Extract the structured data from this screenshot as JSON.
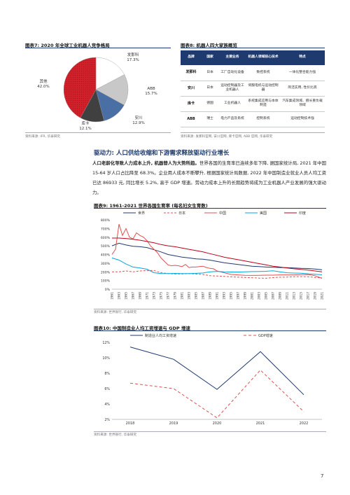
{
  "fig7": {
    "title": "图表7:  2020 年全球工业机器人竞争格局",
    "source": "资料来源: IFR, 华泰研究",
    "chart_data": {
      "type": "pie",
      "slices": [
        {
          "name": "发那科",
          "value": 17.3,
          "label": "17.3%",
          "color": "#ffffff"
        },
        {
          "name": "ABB",
          "value": 15.7,
          "label": "15.7%",
          "color": "#c8c8c8"
        },
        {
          "name": "安川",
          "value": 12.9,
          "label": "12.9%",
          "color": "#4a6fa5"
        },
        {
          "name": "库卡",
          "value": 12.1,
          "label": "12.1%",
          "color": "#404040"
        },
        {
          "name": "其他",
          "value": 42.0,
          "label": "42.0%",
          "color": "#d0202a"
        }
      ]
    }
  },
  "fig8": {
    "title": "图表8:  机器人四大家族概览",
    "source": "资料来源: 发那科官网, 安川官网, 库卡官网, ABB 官网, 华泰研究",
    "headers": [
      "品牌",
      "国家",
      "主要业务",
      "机器人领域核心技术",
      "特点"
    ],
    "rows": [
      [
        "发那科",
        "日本",
        "工厂自动化设备",
        "数控系统",
        "一体化整合能力强"
      ],
      [
        "安川",
        "日本",
        "运动控制器及工业机器人",
        "伺服电机与运动控制器",
        "简洁实用, 性价比高"
      ],
      [
        "库卡",
        "德国",
        "工业机器人",
        "系统集成应用与本体制造",
        "汽车集成领域、擅长重负载领域"
      ],
      [
        "ABB",
        "瑞士",
        "电力产品及系统",
        "控制系统",
        "运动控制技术强"
      ]
    ]
  },
  "section": {
    "heading": "驱动力: 人口供给收缩和下游需求释放驱动行业增长",
    "para_bold": "人口老龄化导致人力成本上升, 机器替人为大势所趋。",
    "para_text": "世界各国的生育率已连续多年下降, 据国家统计局, 2021 年中国 15-64 岁人口占比降至 68.3%。企业用人成本不断攀升, 根据国家统计局数据, 2022 年中国制造业就业人员人均工资已达 86933 元, 同比增长 5.2%, 高于 GDP 增速。劳动力成本上升的长期趋势将成为工业机器人产业发展的强大驱动力。"
  },
  "fig9": {
    "title": "图表9:  1961-2021 世界各国生育率 (每名妇女生育数)",
    "source": "资料来源: 世界银行, 华泰研究",
    "chart_data": {
      "type": "line",
      "x_start": 1961,
      "x_end": 2021,
      "x_tick_labels": [
        "1961",
        "1963",
        "1965",
        "1967",
        "1969",
        "1971",
        "1973",
        "1975",
        "1977",
        "1979",
        "1981",
        "1983",
        "1985",
        "1987",
        "1989",
        "1991",
        "1993",
        "1995",
        "1997",
        "1999",
        "2001",
        "2003",
        "2005",
        "2007",
        "2009",
        "2011",
        "2013",
        "2015",
        "2017",
        "2019",
        "2021"
      ],
      "y_ticks": [
        "0%",
        "100%",
        "200%",
        "300%",
        "400%",
        "500%",
        "600%",
        "700%",
        "800%"
      ],
      "ylim": [
        0,
        800
      ],
      "series": [
        {
          "name": "世界",
          "color": "#1f3a6e",
          "dash": "",
          "points": [
            [
              1961,
              500
            ],
            [
              1963,
              530
            ],
            [
              1965,
              510
            ],
            [
              1967,
              495
            ],
            [
              1969,
              490
            ],
            [
              1971,
              480
            ],
            [
              1973,
              455
            ],
            [
              1975,
              430
            ],
            [
              1977,
              400
            ],
            [
              1979,
              385
            ],
            [
              1981,
              370
            ],
            [
              1983,
              360
            ],
            [
              1985,
              350
            ],
            [
              1987,
              345
            ],
            [
              1989,
              335
            ],
            [
              1991,
              320
            ],
            [
              1993,
              305
            ],
            [
              1995,
              295
            ],
            [
              1997,
              285
            ],
            [
              1999,
              275
            ],
            [
              2001,
              265
            ],
            [
              2003,
              260
            ],
            [
              2005,
              255
            ],
            [
              2007,
              252
            ],
            [
              2009,
              250
            ],
            [
              2011,
              248
            ],
            [
              2013,
              245
            ],
            [
              2015,
              240
            ],
            [
              2017,
              238
            ],
            [
              2019,
              232
            ],
            [
              2021,
              225
            ]
          ]
        },
        {
          "name": "日本",
          "color": "#e05050",
          "dash": "3,2",
          "points": [
            [
              1961,
              200
            ],
            [
              1963,
              200
            ],
            [
              1965,
              210
            ],
            [
              1967,
              200
            ],
            [
              1969,
              210
            ],
            [
              1971,
              215
            ],
            [
              1973,
              215
            ],
            [
              1975,
              190
            ],
            [
              1977,
              180
            ],
            [
              1979,
              175
            ],
            [
              1981,
              175
            ],
            [
              1983,
              180
            ],
            [
              1985,
              175
            ],
            [
              1987,
              170
            ],
            [
              1989,
              155
            ],
            [
              1991,
              152
            ],
            [
              1993,
              148
            ],
            [
              1995,
              142
            ],
            [
              1997,
              138
            ],
            [
              1999,
              135
            ],
            [
              2001,
              132
            ],
            [
              2003,
              128
            ],
            [
              2005,
              126
            ],
            [
              2007,
              133
            ],
            [
              2009,
              137
            ],
            [
              2011,
              139
            ],
            [
              2013,
              143
            ],
            [
              2015,
              145
            ],
            [
              2017,
              143
            ],
            [
              2019,
              136
            ],
            [
              2021,
              130
            ]
          ]
        },
        {
          "name": "中国",
          "color": "#e05050",
          "dash": "",
          "points": [
            [
              1961,
              400
            ],
            [
              1962,
              460
            ],
            [
              1963,
              750
            ],
            [
              1964,
              620
            ],
            [
              1965,
              700
            ],
            [
              1966,
              600
            ],
            [
              1967,
              580
            ],
            [
              1968,
              650
            ],
            [
              1969,
              620
            ],
            [
              1970,
              600
            ],
            [
              1971,
              560
            ],
            [
              1972,
              500
            ],
            [
              1973,
              460
            ],
            [
              1974,
              420
            ],
            [
              1975,
              360
            ],
            [
              1976,
              320
            ],
            [
              1977,
              280
            ],
            [
              1978,
              270
            ],
            [
              1979,
              275
            ],
            [
              1980,
              270
            ],
            [
              1981,
              260
            ],
            [
              1982,
              285
            ],
            [
              1983,
              250
            ],
            [
              1984,
              255
            ],
            [
              1985,
              255
            ],
            [
              1986,
              260
            ],
            [
              1987,
              265
            ],
            [
              1988,
              250
            ],
            [
              1989,
              240
            ],
            [
              1990,
              235
            ],
            [
              1991,
              210
            ],
            [
              1993,
              190
            ],
            [
              1995,
              170
            ],
            [
              1997,
              165
            ],
            [
              1999,
              160
            ],
            [
              2001,
              158
            ],
            [
              2003,
              160
            ],
            [
              2005,
              162
            ],
            [
              2007,
              162
            ],
            [
              2009,
              165
            ],
            [
              2011,
              165
            ],
            [
              2013,
              165
            ],
            [
              2015,
              167
            ],
            [
              2017,
              170
            ],
            [
              2019,
              155
            ],
            [
              2021,
              125
            ]
          ]
        },
        {
          "name": "美国",
          "color": "#00a8e0",
          "dash": "",
          "points": [
            [
              1961,
              360
            ],
            [
              1963,
              335
            ],
            [
              1965,
              290
            ],
            [
              1967,
              255
            ],
            [
              1969,
              245
            ],
            [
              1971,
              230
            ],
            [
              1973,
              190
            ],
            [
              1975,
              180
            ],
            [
              1977,
              180
            ],
            [
              1979,
              182
            ],
            [
              1981,
              180
            ],
            [
              1983,
              180
            ],
            [
              1985,
              183
            ],
            [
              1987,
              187
            ],
            [
              1989,
              200
            ],
            [
              1991,
              205
            ],
            [
              1993,
              200
            ],
            [
              1995,
              198
            ],
            [
              1997,
              198
            ],
            [
              1999,
              200
            ],
            [
              2001,
              203
            ],
            [
              2003,
              204
            ],
            [
              2005,
              206
            ],
            [
              2007,
              212
            ],
            [
              2009,
              200
            ],
            [
              2011,
              189
            ],
            [
              2013,
              186
            ],
            [
              2015,
              184
            ],
            [
              2017,
              177
            ],
            [
              2019,
              171
            ],
            [
              2021,
              166
            ]
          ]
        },
        {
          "name": "印度",
          "color": "#c0001a",
          "dash": "",
          "points": [
            [
              1961,
              590
            ],
            [
              1963,
              590
            ],
            [
              1965,
              585
            ],
            [
              1967,
              575
            ],
            [
              1969,
              565
            ],
            [
              1971,
              550
            ],
            [
              1973,
              535
            ],
            [
              1975,
              515
            ],
            [
              1977,
              500
            ],
            [
              1979,
              490
            ],
            [
              1981,
              475
            ],
            [
              1983,
              460
            ],
            [
              1985,
              445
            ],
            [
              1987,
              430
            ],
            [
              1989,
              410
            ],
            [
              1991,
              390
            ],
            [
              1993,
              370
            ],
            [
              1995,
              355
            ],
            [
              1997,
              340
            ],
            [
              1999,
              325
            ],
            [
              2001,
              310
            ],
            [
              2003,
              295
            ],
            [
              2005,
              280
            ],
            [
              2007,
              265
            ],
            [
              2009,
              255
            ],
            [
              2011,
              245
            ],
            [
              2013,
              235
            ],
            [
              2015,
              228
            ],
            [
              2017,
              220
            ],
            [
              2019,
              210
            ],
            [
              2021,
              200
            ]
          ]
        }
      ]
    }
  },
  "fig10": {
    "title": "图表10:  中国制造业人均工资增速与 GDP 增速",
    "source": "资料来源: 世界银行, 华泰研究",
    "chart_data": {
      "type": "line",
      "categories": [
        "2018",
        "2019",
        "2020",
        "2021",
        "2022"
      ],
      "y_ticks": [
        "2%",
        "4%",
        "6%",
        "8%",
        "10%",
        "12%"
      ],
      "ylim": [
        2,
        12
      ],
      "series": [
        {
          "name": "制造业人均工资增速",
          "color": "#1f3a6e",
          "dash": "",
          "values": [
            11.4,
            9.8,
            5.9,
            10.8,
            5.2
          ]
        },
        {
          "name": "GDP增速",
          "color": "#e05050",
          "dash": "4,3",
          "values": [
            6.7,
            6.0,
            2.2,
            8.4,
            3.0
          ]
        }
      ]
    }
  },
  "page_number": "7"
}
